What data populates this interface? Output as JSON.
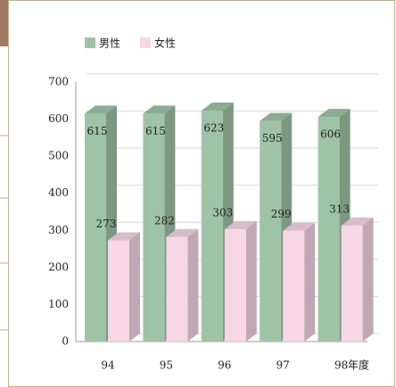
{
  "chart_data": {
    "type": "bar3d",
    "categories": [
      "94",
      "95",
      "96",
      "97",
      "98"
    ],
    "series": [
      {
        "name": "男性",
        "color": "#9fc3a6",
        "values": [
          615,
          615,
          623,
          595,
          606
        ]
      },
      {
        "name": "女性",
        "color": "#f7d6e6",
        "values": [
          273,
          282,
          303,
          299,
          313
        ]
      }
    ],
    "x_label": "年度",
    "ylim": [
      0,
      700
    ],
    "yticks": [
      0,
      100,
      200,
      300,
      400,
      500,
      600,
      700
    ],
    "grid": true
  }
}
